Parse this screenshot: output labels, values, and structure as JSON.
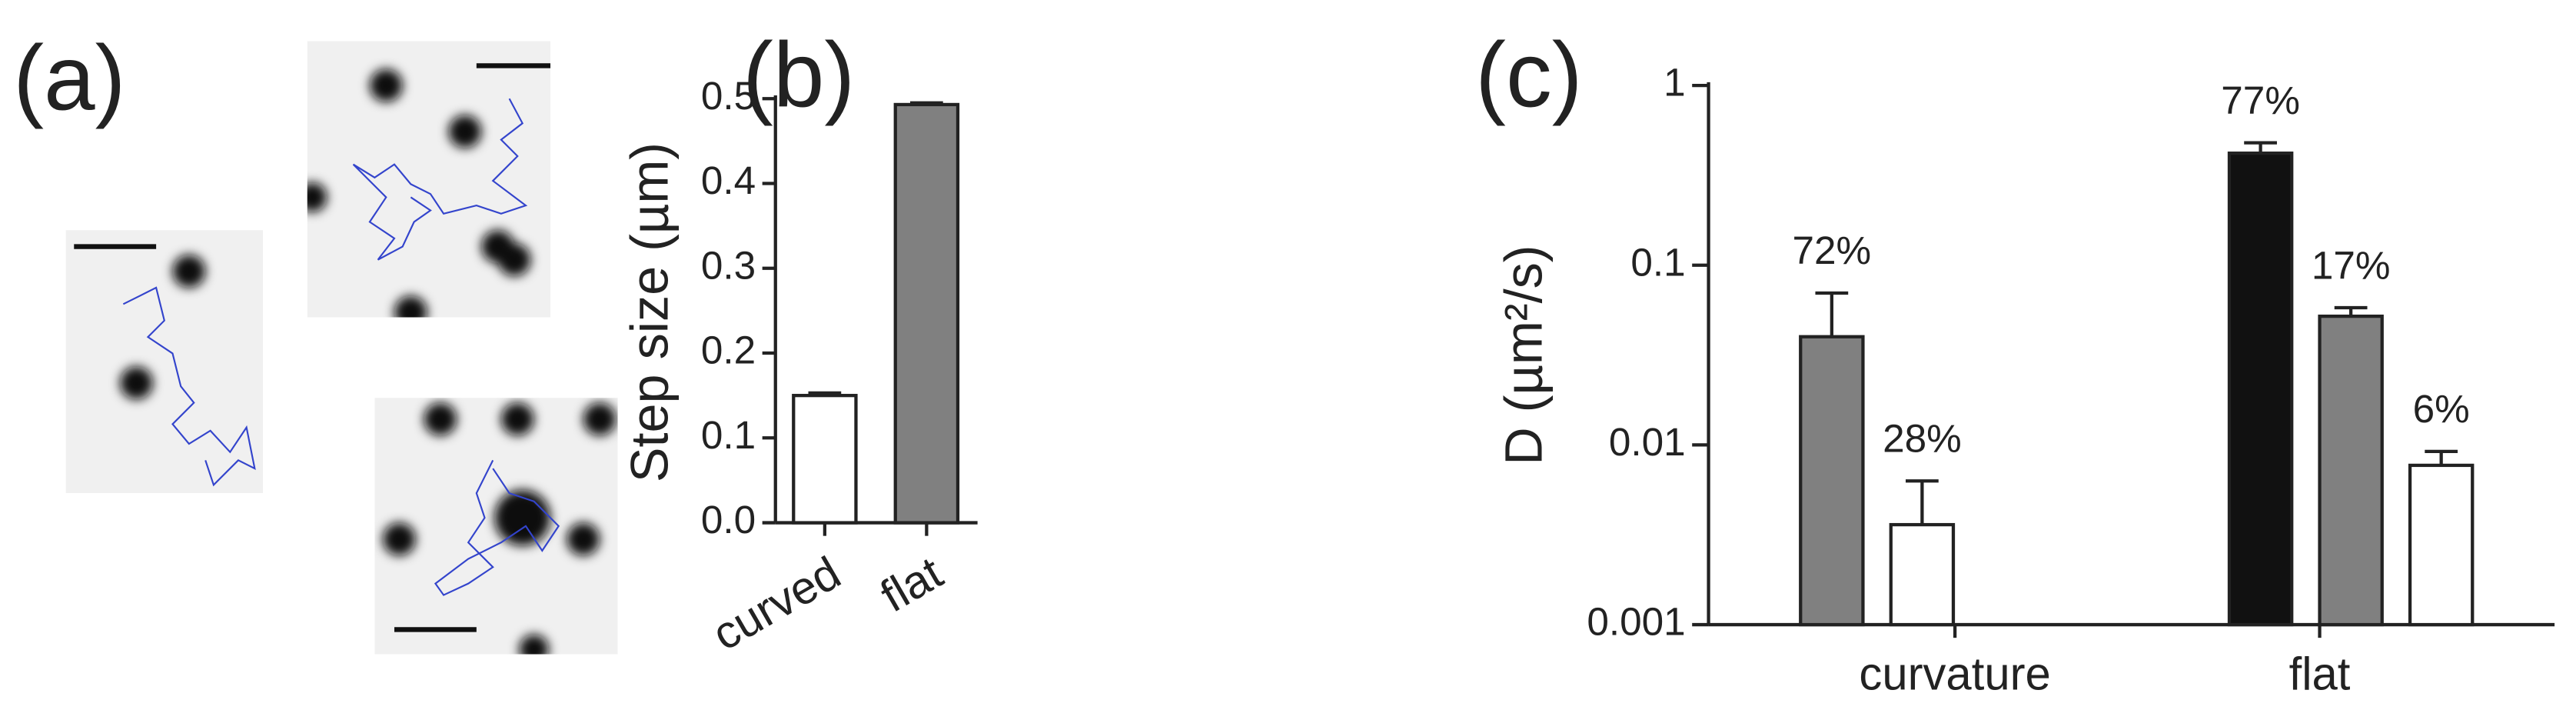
{
  "panel_labels": [
    "(a)",
    "(b)",
    "(c)"
  ],
  "chart_data": [
    {
      "type": "bar",
      "y_label": "Step size (µm)",
      "categories": [
        "curved",
        "flat"
      ],
      "values": [
        0.15,
        0.493
      ],
      "errors": [
        0.003,
        0.002
      ],
      "colors": [
        "#ffffff",
        "#808080"
      ],
      "ylim": [
        0,
        0.5
      ],
      "yticks": [
        {
          "value": 0,
          "label": "0.0"
        },
        0.1,
        0.2,
        0.3,
        0.4,
        0.5
      ]
    },
    {
      "type": "grouped-bar",
      "y_label": "D (µm²/s)",
      "log_scale": true,
      "categories": [
        "curvature",
        "flat"
      ],
      "series": [
        {
          "color": "#111111",
          "values": [
            null,
            0.42
          ],
          "errors": [
            null,
            0.06
          ],
          "percent_labels": [
            null,
            "77%"
          ]
        },
        {
          "color": "#808080",
          "values": [
            0.04,
            0.052
          ],
          "errors": [
            0.03,
            0.006
          ],
          "percent_labels": [
            "72%",
            "17%"
          ]
        },
        {
          "color": "#ffffff",
          "values": [
            0.0036,
            0.0077
          ],
          "errors": [
            0.0027,
            0.0015
          ],
          "percent_labels": [
            "28%",
            "6%"
          ]
        }
      ],
      "ylim": [
        0.001,
        1
      ],
      "yticks": [
        1,
        0.1,
        0.01,
        0.001
      ]
    }
  ]
}
